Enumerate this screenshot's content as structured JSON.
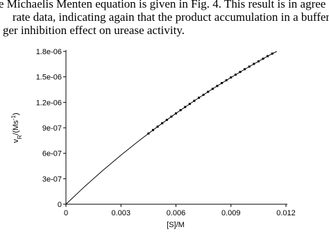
{
  "paragraph": {
    "lines": [
      "e Michaelis Menten equation is given in Fig. 4. This result is in agree",
      "rate data, indicating again that the product accumulation in a buffer f",
      "ger inhibition effect on urease activity."
    ]
  },
  "chart_data": {
    "type": "line",
    "xlabel": "[S]/M",
    "ylabel": [
      "v",
      "R",
      "/(Ms",
      "-1",
      ")"
    ],
    "xlim": [
      0,
      0.012
    ],
    "ylim": [
      0,
      1.8e-06
    ],
    "xticks": [
      0,
      0.003,
      0.006,
      0.009,
      0.012
    ],
    "yticks": [
      0,
      {
        "value": 3e-07,
        "label": "3e-07"
      },
      {
        "value": 6e-07,
        "label": "6e-07"
      },
      {
        "value": 9e-07,
        "label": "9e-07"
      },
      {
        "value": 1.2e-06,
        "label": "1.2e-06"
      },
      {
        "value": 1.5e-06,
        "label": "1.5e-06"
      },
      {
        "value": 1.8e-06,
        "label": "1.8e-06"
      }
    ],
    "series": [
      {
        "type": "line",
        "color": "#000000",
        "x": [
          0,
          0.001,
          0.002,
          0.003,
          0.004,
          0.005,
          0.006,
          0.007,
          0.008,
          0.009,
          0.01,
          0.011,
          0.0115
        ],
        "values": [
          0,
          2.04e-07,
          3.96e-07,
          5.78e-07,
          7.51e-07,
          9.14e-07,
          1.07e-06,
          1.218e-06,
          1.359e-06,
          1.493e-06,
          1.621e-06,
          1.744e-06,
          1.8e-06
        ]
      },
      {
        "type": "scatter",
        "color": "#000000",
        "x": [
          0.0045,
          0.00475,
          0.005,
          0.00525,
          0.0055,
          0.00575,
          0.006,
          0.00625,
          0.0065,
          0.00675,
          0.007,
          0.00725,
          0.0075,
          0.00775,
          0.008,
          0.00825,
          0.0085,
          0.00875,
          0.009,
          0.00925,
          0.0095,
          0.00975,
          0.01,
          0.01025,
          0.0105,
          0.01075,
          0.011,
          0.01125
        ],
        "values": [
          8.33e-07,
          8.74e-07,
          9.14e-07,
          9.54e-07,
          9.93e-07,
          1.032e-06,
          1.07e-06,
          1.108e-06,
          1.145e-06,
          1.181e-06,
          1.218e-06,
          1.254e-06,
          1.289e-06,
          1.324e-06,
          1.359e-06,
          1.393e-06,
          1.427e-06,
          1.46e-06,
          1.493e-06,
          1.526e-06,
          1.558e-06,
          1.59e-06,
          1.621e-06,
          1.653e-06,
          1.683e-06,
          1.714e-06,
          1.744e-06,
          1.774e-06
        ]
      }
    ]
  }
}
